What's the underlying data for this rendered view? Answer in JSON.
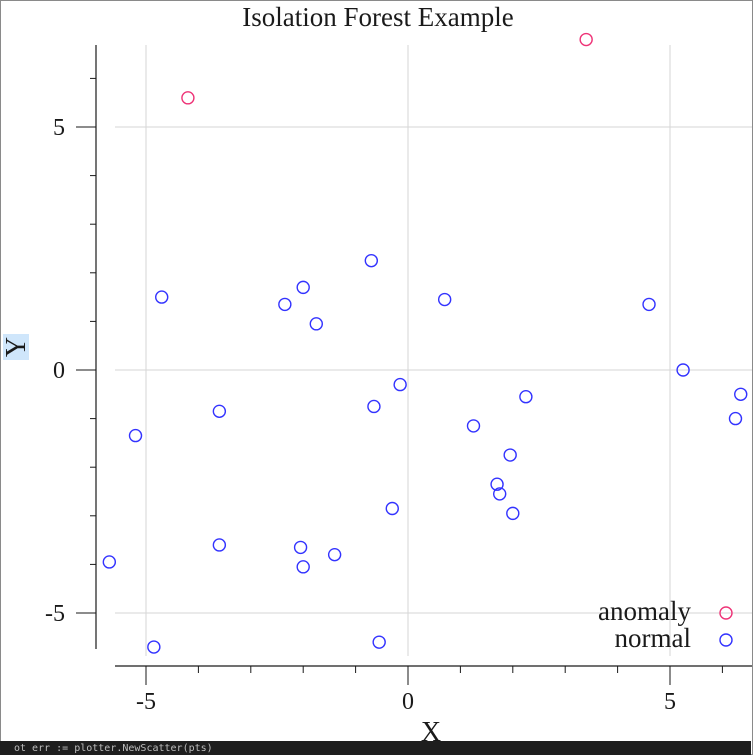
{
  "chart_data": {
    "type": "scatter",
    "title": "Isolation Forest Example",
    "xlabel": "X",
    "ylabel": "Y",
    "xlim": [
      -6.2,
      6.4
    ],
    "ylim": [
      -5.6,
      6.8
    ],
    "xticks": [
      -5,
      0,
      5
    ],
    "xtick_labels": [
      "-5",
      "0",
      "5"
    ],
    "yticks": [
      -5,
      0,
      5
    ],
    "ytick_labels": [
      "-5",
      "0",
      "5"
    ],
    "grid": true,
    "legend_position": "bottom-right",
    "marker": "open-circle",
    "series": [
      {
        "name": "anomaly",
        "color": "#ee3377",
        "points": [
          [
            -4.2,
            5.6
          ],
          [
            3.4,
            6.8
          ]
        ]
      },
      {
        "name": "normal",
        "color": "#3333ff",
        "points": [
          [
            -5.7,
            -3.95
          ],
          [
            -5.2,
            -1.35
          ],
          [
            -4.7,
            1.5
          ],
          [
            -4.85,
            -5.7
          ],
          [
            -3.6,
            -0.85
          ],
          [
            -3.6,
            -3.6
          ],
          [
            -2.35,
            1.35
          ],
          [
            -2.0,
            1.7
          ],
          [
            -1.75,
            0.95
          ],
          [
            -2.05,
            -3.65
          ],
          [
            -2.0,
            -4.05
          ],
          [
            -1.4,
            -3.8
          ],
          [
            -0.7,
            2.25
          ],
          [
            -0.65,
            -0.75
          ],
          [
            -0.15,
            -0.3
          ],
          [
            -0.3,
            -2.85
          ],
          [
            -0.55,
            -5.6
          ],
          [
            0.7,
            1.45
          ],
          [
            1.25,
            -1.15
          ],
          [
            1.7,
            -2.35
          ],
          [
            1.75,
            -2.55
          ],
          [
            1.95,
            -1.75
          ],
          [
            2.0,
            -2.95
          ],
          [
            2.25,
            -0.55
          ],
          [
            4.6,
            1.35
          ],
          [
            5.25,
            0.0
          ],
          [
            6.35,
            -0.5
          ],
          [
            6.25,
            -1.0
          ]
        ]
      }
    ]
  },
  "footer_text": "ot err := plotter.NewScatter(pts)"
}
